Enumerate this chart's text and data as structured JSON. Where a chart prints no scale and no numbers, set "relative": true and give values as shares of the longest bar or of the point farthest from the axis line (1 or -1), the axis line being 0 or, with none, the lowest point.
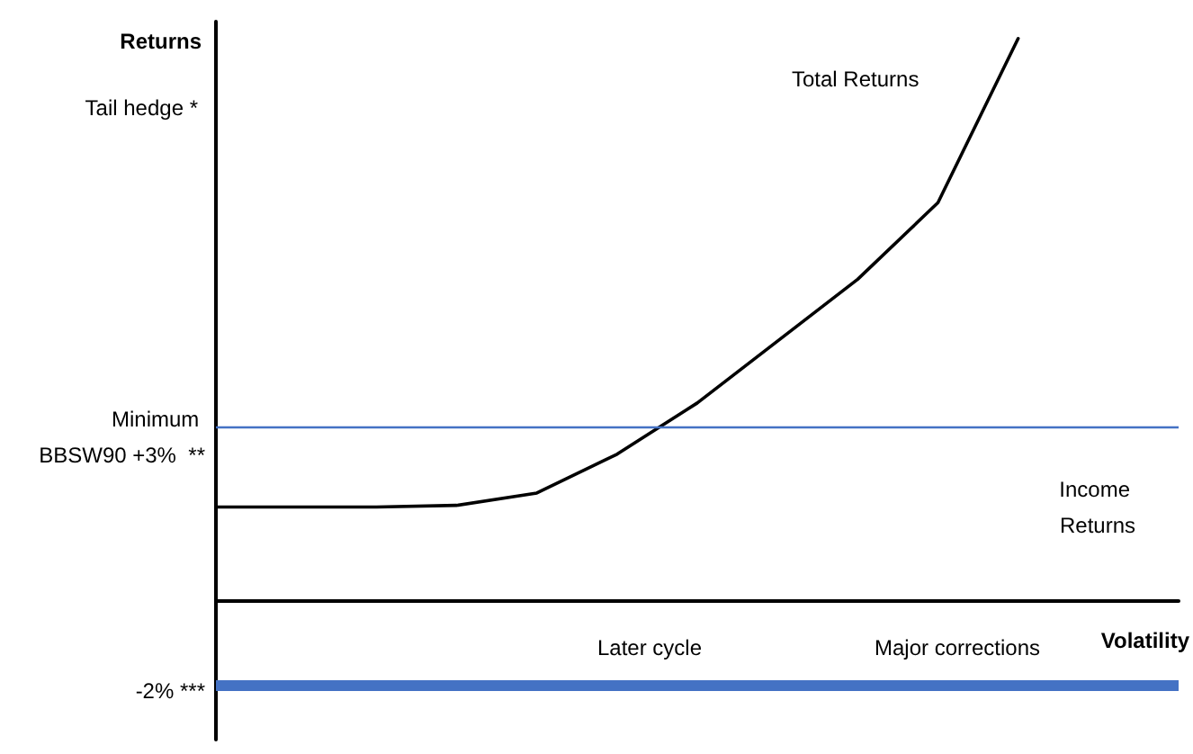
{
  "chart_data": {
    "type": "line",
    "relative": true,
    "xlabel": "Volatility",
    "ylabel": "Returns",
    "categories": [
      null,
      null,
      null,
      null,
      null,
      null,
      null,
      null,
      null,
      null,
      null,
      null,
      null
    ],
    "series": [
      {
        "color": "#000000",
        "values": [
          0.167,
          0.167,
          0.167,
          0.17,
          0.192,
          0.261,
          0.352,
          0.462,
          0.572,
          0.708,
          1,
          null,
          null
        ]
      }
    ],
    "ref_lines": [
      {
        "axis": "y",
        "value": 0.311,
        "color": "#4472c4",
        "line_style": "solid"
      },
      {
        "axis": "y",
        "value": -0.154,
        "color": "#4472c4",
        "line_style": "solid"
      }
    ],
    "annotations": [
      "Total Returns",
      "Income Returns",
      "Later cycle",
      "Major corrections",
      "Tail hedge *",
      "Minimum BBSW90 +3%  **",
      "-2% ***"
    ],
    "marker": "none",
    "grid": false
  }
}
